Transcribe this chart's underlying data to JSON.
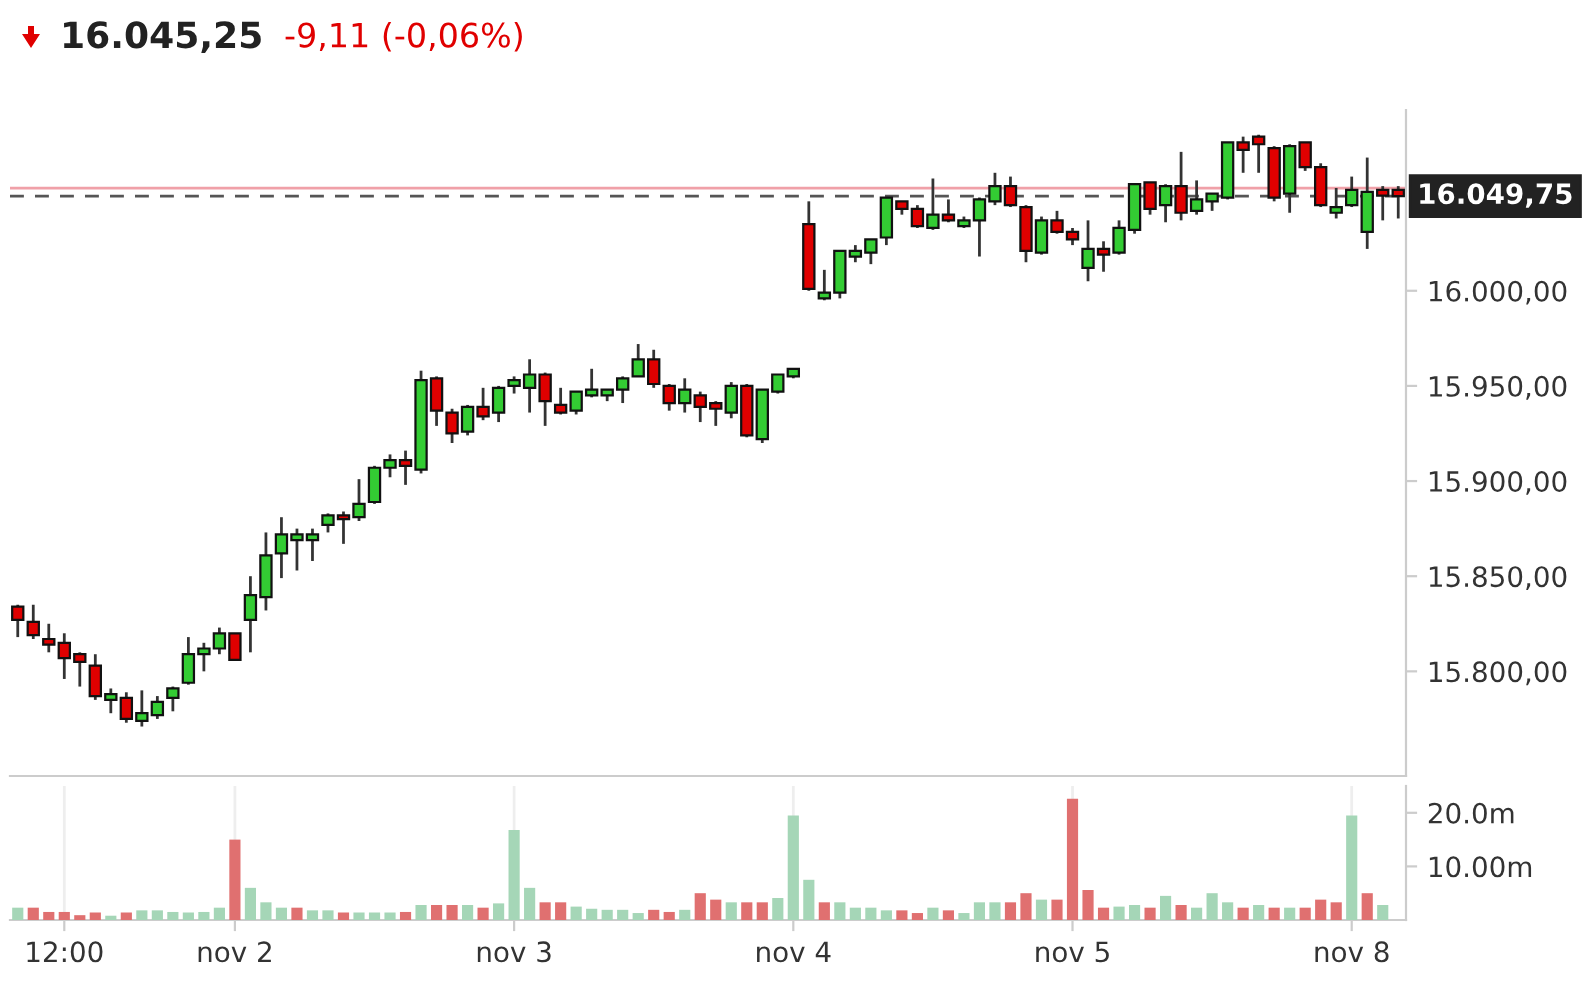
{
  "chart_data": [
    {
      "type": "candlestick",
      "title": "16.045,25",
      "subtitle": "-9,11 (-0,06%)",
      "categories": [
        null,
        null,
        null,
        null,
        null,
        null,
        null,
        null,
        null,
        null,
        null,
        null,
        null,
        null,
        null,
        null,
        null,
        null,
        null,
        null,
        null,
        null,
        null,
        null,
        null,
        null,
        null,
        null,
        null,
        null,
        null,
        null,
        null,
        null,
        null,
        null,
        null,
        null,
        null,
        null,
        null,
        null,
        null,
        null,
        null,
        null,
        null,
        null,
        null,
        null,
        null,
        null,
        null,
        null,
        null,
        null,
        null,
        null,
        null,
        null,
        null,
        null,
        null,
        null,
        null,
        null,
        null,
        null,
        null,
        null,
        null,
        null,
        null,
        null,
        null,
        null,
        null,
        null,
        null,
        null,
        null,
        null,
        null,
        null,
        null,
        null,
        null,
        null,
        null,
        null
      ],
      "ohlc": [
        [
          15834,
          15835,
          15818,
          15827
        ],
        [
          15826,
          15835,
          15817,
          15819
        ],
        [
          15817,
          15825,
          15810,
          15814
        ],
        [
          15815,
          15820,
          15796,
          15807
        ],
        [
          15809,
          15810,
          15792,
          15805
        ],
        [
          15803,
          15809,
          15785,
          15787
        ],
        [
          15785,
          15791,
          15778,
          15788
        ],
        [
          15786,
          15789,
          15773,
          15775
        ],
        [
          15774,
          15790,
          15771,
          15778
        ],
        [
          15777,
          15787,
          15775,
          15784
        ],
        [
          15786,
          15792,
          15779,
          15791
        ],
        [
          15794,
          15818,
          15793,
          15809
        ],
        [
          15809,
          15815,
          15800,
          15812
        ],
        [
          15812,
          15823,
          15809,
          15820
        ],
        [
          15820,
          15820,
          15806,
          15806
        ],
        [
          15827,
          15850,
          15810,
          15840
        ],
        [
          15839,
          15873,
          15832,
          15861
        ],
        [
          15862,
          15881,
          15849,
          15872
        ],
        [
          15869,
          15875,
          15853,
          15872
        ],
        [
          15869,
          15875,
          15858,
          15872
        ],
        [
          15877,
          15883,
          15873,
          15882
        ],
        [
          15882,
          15884,
          15867,
          15880
        ],
        [
          15881,
          15901,
          15879,
          15888
        ],
        [
          15889,
          15908,
          15888,
          15907
        ],
        [
          15907,
          15914,
          15902,
          15911
        ],
        [
          15911,
          15916,
          15898,
          15908
        ],
        [
          15906,
          15958,
          15904,
          15953
        ],
        [
          15954,
          15955,
          15929,
          15937
        ],
        [
          15936,
          15938,
          15920,
          15925
        ],
        [
          15926,
          15940,
          15924,
          15939
        ],
        [
          15939,
          15949,
          15932,
          15934
        ],
        [
          15936,
          15950,
          15931,
          15949
        ],
        [
          15950,
          15955,
          15946,
          15953
        ],
        [
          15949,
          15964,
          15936,
          15956
        ],
        [
          15956,
          15957,
          15929,
          15942
        ],
        [
          15940,
          15949,
          15935,
          15936
        ],
        [
          15937,
          15947,
          15935,
          15947
        ],
        [
          15945,
          15959,
          15944,
          15948
        ],
        [
          15945,
          15948,
          15942,
          15948
        ],
        [
          15948,
          15955,
          15941,
          15954
        ],
        [
          15955,
          15972,
          15955,
          15964
        ],
        [
          15964,
          15969,
          15949,
          15951
        ],
        [
          15950,
          15951,
          15937,
          15941
        ],
        [
          15941,
          15954,
          15936,
          15948
        ],
        [
          15945,
          15947,
          15931,
          15939
        ],
        [
          15941,
          15942,
          15929,
          15938
        ],
        [
          15936,
          15952,
          15933,
          15950
        ],
        [
          15950,
          15951,
          15923,
          15924
        ],
        [
          15922,
          15948,
          15920,
          15948
        ],
        [
          15947,
          15956,
          15946,
          15956
        ],
        [
          15955,
          15959,
          15954,
          15959
        ],
        [
          16035,
          16047,
          16000,
          16001
        ],
        [
          15996,
          16011,
          15995,
          15999
        ],
        [
          15999,
          16021,
          15996,
          16021
        ],
        [
          16018,
          16024,
          16015,
          16021
        ],
        [
          16020,
          16027,
          16014,
          16027
        ],
        [
          16028,
          16049,
          16024,
          16049
        ],
        [
          16047,
          16047,
          16040,
          16043
        ],
        [
          16043,
          16045,
          16033,
          16034
        ],
        [
          16033,
          16059,
          16032,
          16040
        ],
        [
          16040,
          16048,
          16036,
          16037
        ],
        [
          16034,
          16039,
          16033,
          16037
        ],
        [
          16037,
          16049,
          16018,
          16048
        ],
        [
          16047,
          16062,
          16045,
          16055
        ],
        [
          16055,
          16060,
          16044,
          16045
        ],
        [
          16044,
          16045,
          16015,
          16021
        ],
        [
          16020,
          16039,
          16019,
          16037
        ],
        [
          16037,
          16042,
          16030,
          16031
        ],
        [
          16031,
          16033,
          16024,
          16027
        ],
        [
          16012,
          16037,
          16005,
          16022
        ],
        [
          16022,
          16026,
          16010,
          16019
        ],
        [
          16020,
          16037,
          16019,
          16033
        ],
        [
          16032,
          16056,
          16030,
          16056
        ],
        [
          16057,
          16057,
          16040,
          16043
        ],
        [
          16045,
          16056,
          16036,
          16055
        ],
        [
          16055,
          16073,
          16037,
          16041
        ],
        [
          16042,
          16058,
          16040,
          16048
        ],
        [
          16047,
          16051,
          16042,
          16051
        ],
        [
          16049,
          16078,
          16048,
          16078
        ],
        [
          16078,
          16081,
          16062,
          16074
        ],
        [
          16081,
          16082,
          16062,
          16077
        ],
        [
          16075,
          16076,
          16047,
          16049
        ],
        [
          16051,
          16077,
          16041,
          16076
        ],
        [
          16078,
          16078,
          16063,
          16065
        ],
        [
          16065,
          16067,
          16044,
          16045
        ],
        [
          16041,
          16054,
          16038,
          16044
        ],
        [
          16045,
          16060,
          16044,
          16053
        ],
        [
          16031,
          16070,
          16022,
          16052
        ],
        [
          16053,
          16055,
          16037,
          16050
        ],
        [
          16053,
          16055,
          16038,
          16049.75
        ]
      ],
      "colors": [
        "#e00000",
        "#e00000",
        "#e00000",
        "#e00000",
        "#e00000",
        "#e00000",
        "#33cc33",
        "#e00000",
        "#33cc33",
        "#33cc33",
        "#33cc33",
        "#33cc33",
        "#33cc33",
        "#33cc33",
        "#e00000",
        "#33cc33",
        "#33cc33",
        "#33cc33",
        "#33cc33",
        "#33cc33",
        "#33cc33",
        "#e00000",
        "#33cc33",
        "#33cc33",
        "#33cc33",
        "#e00000",
        "#33cc33",
        "#e00000",
        "#e00000",
        "#33cc33",
        "#e00000",
        "#33cc33",
        "#33cc33",
        "#33cc33",
        "#e00000",
        "#e00000",
        "#33cc33",
        "#33cc33",
        "#33cc33",
        "#33cc33",
        "#33cc33",
        "#e00000",
        "#e00000",
        "#33cc33",
        "#e00000",
        "#e00000",
        "#33cc33",
        "#e00000",
        "#33cc33",
        "#33cc33",
        "#33cc33",
        "#e00000",
        "#33cc33",
        "#33cc33",
        "#33cc33",
        "#33cc33",
        "#33cc33",
        "#e00000",
        "#e00000",
        "#33cc33",
        "#e00000",
        "#33cc33",
        "#33cc33",
        "#33cc33",
        "#e00000",
        "#e00000",
        "#33cc33",
        "#e00000",
        "#e00000",
        "#33cc33",
        "#e00000",
        "#33cc33",
        "#33cc33",
        "#e00000",
        "#33cc33",
        "#e00000",
        "#33cc33",
        "#33cc33",
        "#33cc33",
        "#e00000",
        "#e00000",
        "#e00000",
        "#33cc33",
        "#e00000",
        "#e00000",
        "#33cc33",
        "#33cc33",
        "#33cc33",
        "#e00000",
        "#e00000"
      ],
      "ylim": [
        15745,
        16095
      ],
      "yticks": [
        {
          "value": 15800,
          "label": "15.800,00"
        },
        {
          "value": 15850,
          "label": "15.850,00"
        },
        {
          "value": 15900,
          "label": "15.900,00"
        },
        {
          "value": 15950,
          "label": "15.950,00"
        },
        {
          "value": 16000,
          "label": "16.000,00"
        }
      ],
      "ref_lines": [
        {
          "axis": "y",
          "value": 16054,
          "color": "#f0a0a8",
          "line_style": "solid"
        },
        {
          "axis": "y",
          "value": 16049.75,
          "label": "16.049,75",
          "color": "#555555",
          "line_style": "dashed"
        }
      ],
      "tick_labels": "y"
    },
    {
      "type": "bar",
      "categories": [
        null,
        null,
        null,
        "12:00",
        null,
        null,
        null,
        null,
        null,
        null,
        null,
        null,
        null,
        null,
        "nov 2",
        null,
        null,
        null,
        null,
        null,
        null,
        null,
        null,
        null,
        null,
        null,
        null,
        null,
        null,
        null,
        null,
        null,
        "nov 3",
        null,
        null,
        null,
        null,
        null,
        null,
        null,
        null,
        null,
        null,
        null,
        null,
        null,
        null,
        null,
        null,
        null,
        "nov 4",
        null,
        null,
        null,
        null,
        null,
        null,
        null,
        null,
        null,
        null,
        null,
        null,
        null,
        null,
        null,
        null,
        null,
        "nov 5",
        null,
        null,
        null,
        null,
        null,
        null,
        null,
        null,
        null,
        null,
        null,
        null,
        null,
        null,
        null,
        null,
        null,
        "nov 8",
        null,
        null,
        null
      ],
      "values": [
        2.3,
        2.3,
        1.5,
        1.5,
        0.9,
        1.4,
        0.8,
        1.4,
        1.8,
        1.8,
        1.5,
        1.4,
        1.5,
        2.3,
        15,
        6.0,
        3.3,
        2.3,
        2.3,
        1.8,
        1.8,
        1.4,
        1.4,
        1.4,
        1.4,
        1.5,
        2.8,
        2.8,
        2.8,
        2.8,
        2.3,
        3.1,
        16.8,
        6.0,
        3.3,
        3.3,
        2.5,
        2.1,
        1.9,
        1.9,
        1.3,
        1.9,
        1.5,
        1.9,
        5.0,
        3.8,
        3.3,
        3.3,
        3.3,
        4.1,
        19.5,
        7.5,
        3.3,
        3.3,
        2.3,
        2.3,
        1.8,
        1.8,
        1.3,
        2.3,
        1.8,
        1.3,
        3.3,
        3.3,
        3.3,
        5.0,
        3.8,
        3.8,
        22.6,
        5.6,
        2.3,
        2.5,
        2.8,
        2.3,
        4.5,
        2.8,
        2.3,
        5.0,
        3.3,
        2.3,
        2.8,
        2.3,
        2.3,
        2.3,
        3.8,
        3.3,
        19.5,
        5.0,
        2.8,
        null
      ],
      "colors": [
        "#a5d6b7",
        "#e07070",
        "#e07070",
        "#e07070",
        "#e07070",
        "#e07070",
        "#a5d6b7",
        "#e07070",
        "#a5d6b7",
        "#a5d6b7",
        "#a5d6b7",
        "#a5d6b7",
        "#a5d6b7",
        "#a5d6b7",
        "#e07070",
        "#a5d6b7",
        "#a5d6b7",
        "#a5d6b7",
        "#e07070",
        "#a5d6b7",
        "#a5d6b7",
        "#e07070",
        "#a5d6b7",
        "#a5d6b7",
        "#a5d6b7",
        "#e07070",
        "#a5d6b7",
        "#e07070",
        "#e07070",
        "#a5d6b7",
        "#e07070",
        "#a5d6b7",
        "#a5d6b7",
        "#a5d6b7",
        "#e07070",
        "#e07070",
        "#a5d6b7",
        "#a5d6b7",
        "#a5d6b7",
        "#a5d6b7",
        "#a5d6b7",
        "#e07070",
        "#e07070",
        "#a5d6b7",
        "#e07070",
        "#e07070",
        "#a5d6b7",
        "#e07070",
        "#e07070",
        "#a5d6b7",
        "#a5d6b7",
        "#a5d6b7",
        "#e07070",
        "#a5d6b7",
        "#a5d6b7",
        "#a5d6b7",
        "#a5d6b7",
        "#e07070",
        "#e07070",
        "#a5d6b7",
        "#e07070",
        "#a5d6b7",
        "#a5d6b7",
        "#a5d6b7",
        "#e07070",
        "#e07070",
        "#a5d6b7",
        "#e07070",
        "#e07070",
        "#e07070",
        "#e07070",
        "#a5d6b7",
        "#a5d6b7",
        "#e07070",
        "#a5d6b7",
        "#e07070",
        "#a5d6b7",
        "#a5d6b7",
        "#a5d6b7",
        "#e07070",
        "#a5d6b7",
        "#e07070",
        "#a5d6b7",
        "#e07070",
        "#e07070",
        "#e07070",
        "#a5d6b7",
        "#e07070",
        "#a5d6b7",
        "#a5d6b7"
      ],
      "ylim": [
        0,
        25
      ],
      "yticks": [
        {
          "value": 10,
          "label": "10.00m"
        },
        {
          "value": 20,
          "label": "20.0m"
        }
      ],
      "grid": "x"
    }
  ]
}
